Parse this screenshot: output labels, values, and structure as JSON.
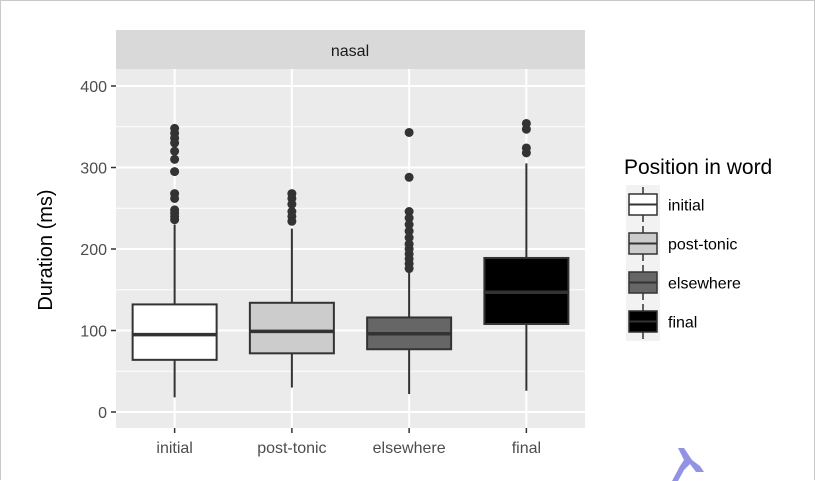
{
  "chart_data": {
    "type": "boxplot",
    "facet_label": "nasal",
    "ylabel": "Duration (ms)",
    "xlabel": "",
    "ylim": [
      -20,
      420
    ],
    "y_ticks": [
      0,
      100,
      200,
      300,
      400
    ],
    "categories": [
      "initial",
      "post-tonic",
      "elsewhere",
      "final"
    ],
    "legend": {
      "title": "Position in word",
      "placement": "right",
      "entries": [
        "initial",
        "post-tonic",
        "elsewhere",
        "final"
      ]
    },
    "grid": true,
    "colors": {
      "panel": "#ebebeb",
      "strip": "#d9d9d9",
      "grid": "#ffffff",
      "box_outline": "#333333",
      "outlier": "#333333"
    },
    "series": [
      {
        "category": "initial",
        "fill": "#ffffff",
        "whisker_low": 18,
        "q1": 64,
        "median": 95,
        "q3": 132,
        "whisker_high": 230,
        "outliers": [
          348,
          342,
          336,
          330,
          320,
          310,
          295,
          268,
          262,
          248,
          244,
          240,
          236
        ]
      },
      {
        "category": "post-tonic",
        "fill": "#cccccc",
        "whisker_low": 30,
        "q1": 72,
        "median": 99,
        "q3": 134,
        "whisker_high": 225,
        "outliers": [
          268,
          262,
          255,
          246,
          240,
          234
        ]
      },
      {
        "category": "elsewhere",
        "fill": "#666666",
        "whisker_low": 22,
        "q1": 77,
        "median": 96,
        "q3": 116,
        "whisker_high": 172,
        "outliers": [
          343,
          288,
          246,
          238,
          230,
          222,
          214,
          206,
          200,
          194,
          188,
          182,
          176
        ]
      },
      {
        "category": "final",
        "fill": "#000000",
        "whisker_low": 26,
        "q1": 108,
        "median": 147,
        "q3": 189,
        "whisker_high": 305,
        "outliers": [
          354,
          347,
          324,
          318
        ]
      }
    ]
  }
}
